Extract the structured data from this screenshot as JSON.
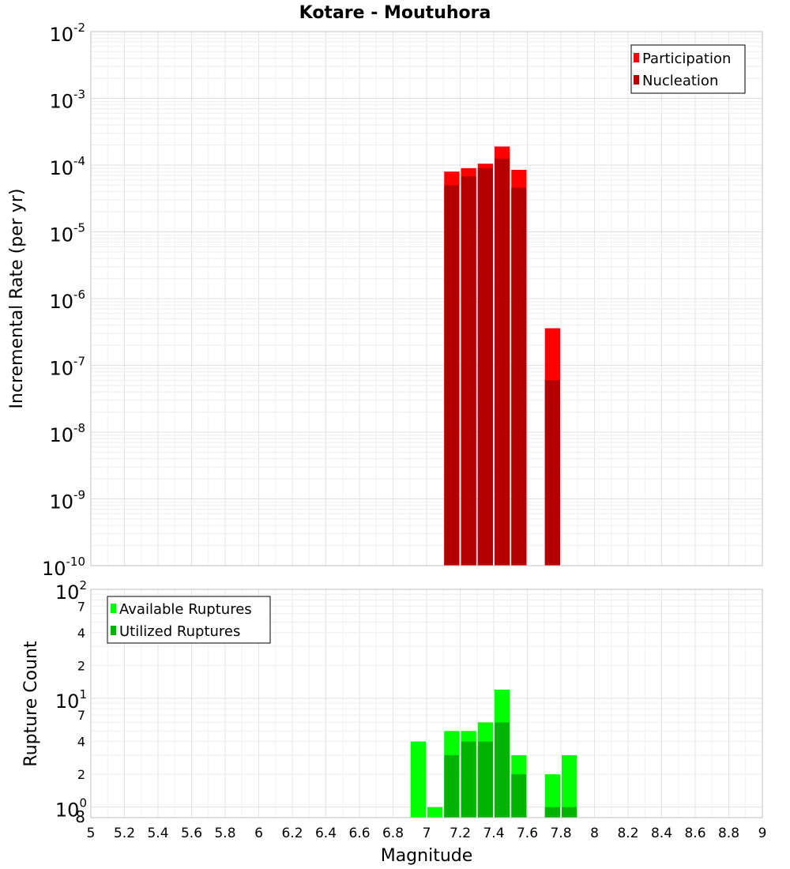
{
  "chart_data": [
    {
      "type": "bar",
      "title": "Kotare - Moutuhora",
      "xlabel": "Magnitude",
      "ylabel": "Incremental Rate (per yr)",
      "yscale": "log",
      "ylim_exponents": [
        -10,
        -2
      ],
      "xlim": [
        5,
        9
      ],
      "bin_width": 0.1,
      "y_tick_labels": [
        {
          "base": "10",
          "exp": "-2"
        },
        {
          "base": "10",
          "exp": "-3"
        },
        {
          "base": "10",
          "exp": "-4"
        },
        {
          "base": "10",
          "exp": "-5"
        },
        {
          "base": "10",
          "exp": "-6"
        },
        {
          "base": "10",
          "exp": "-7"
        },
        {
          "base": "10",
          "exp": "-8"
        },
        {
          "base": "10",
          "exp": "-9"
        },
        {
          "base": "10",
          "exp": "-10"
        }
      ],
      "legend_position": "top-right",
      "series": [
        {
          "name": "Participation",
          "color": "#ff0000",
          "x": [
            7.15,
            7.25,
            7.35,
            7.45,
            7.55,
            7.75
          ],
          "values": [
            8e-05,
            9e-05,
            0.000105,
            0.00019,
            8.5e-05,
            3.6e-07
          ]
        },
        {
          "name": "Nucleation",
          "color": "#b40000",
          "x": [
            7.15,
            7.25,
            7.35,
            7.45,
            7.55,
            7.75
          ],
          "values": [
            5e-05,
            6.8e-05,
            9e-05,
            0.000125,
            4.6e-05,
            6e-08
          ]
        }
      ]
    },
    {
      "type": "bar",
      "xlabel": "Magnitude",
      "ylabel": "Rupture Count",
      "yscale": "log",
      "ylim": [
        0.8,
        100
      ],
      "xlim": [
        5,
        9
      ],
      "bin_width": 0.1,
      "x_ticks": [
        "5",
        "5.2",
        "5.4",
        "5.6",
        "5.8",
        "6",
        "6.2",
        "6.4",
        "6.6",
        "6.8",
        "7",
        "7.2",
        "7.4",
        "7.6",
        "7.8",
        "8",
        "8.2",
        "8.4",
        "8.6",
        "8.8",
        "9"
      ],
      "y_major_tick_labels": [
        {
          "base": "10",
          "exp": "2",
          "value": 100
        },
        {
          "base": "10",
          "exp": "1",
          "value": 10
        },
        {
          "base": "10",
          "exp": "0",
          "value": 1
        }
      ],
      "y_minor_tick_labels": [
        {
          "label": "7",
          "value": 70
        },
        {
          "label": "4",
          "value": 40
        },
        {
          "label": "2",
          "value": 20
        },
        {
          "label": "7",
          "value": 7
        },
        {
          "label": "4",
          "value": 4
        },
        {
          "label": "2",
          "value": 2
        },
        {
          "label": "8",
          "value": 0.8
        }
      ],
      "legend_position": "top-left",
      "series": [
        {
          "name": "Available Ruptures",
          "color": "#00ff00",
          "x": [
            6.95,
            7.05,
            7.15,
            7.25,
            7.35,
            7.45,
            7.55,
            7.75,
            7.85
          ],
          "values": [
            4,
            1,
            5,
            5,
            6,
            12,
            3,
            2,
            3
          ]
        },
        {
          "name": "Utilized Ruptures",
          "color": "#00b400",
          "x": [
            7.15,
            7.25,
            7.35,
            7.45,
            7.55,
            7.75,
            7.85
          ],
          "values": [
            3,
            4,
            4,
            6,
            2,
            1,
            1
          ]
        }
      ]
    }
  ]
}
